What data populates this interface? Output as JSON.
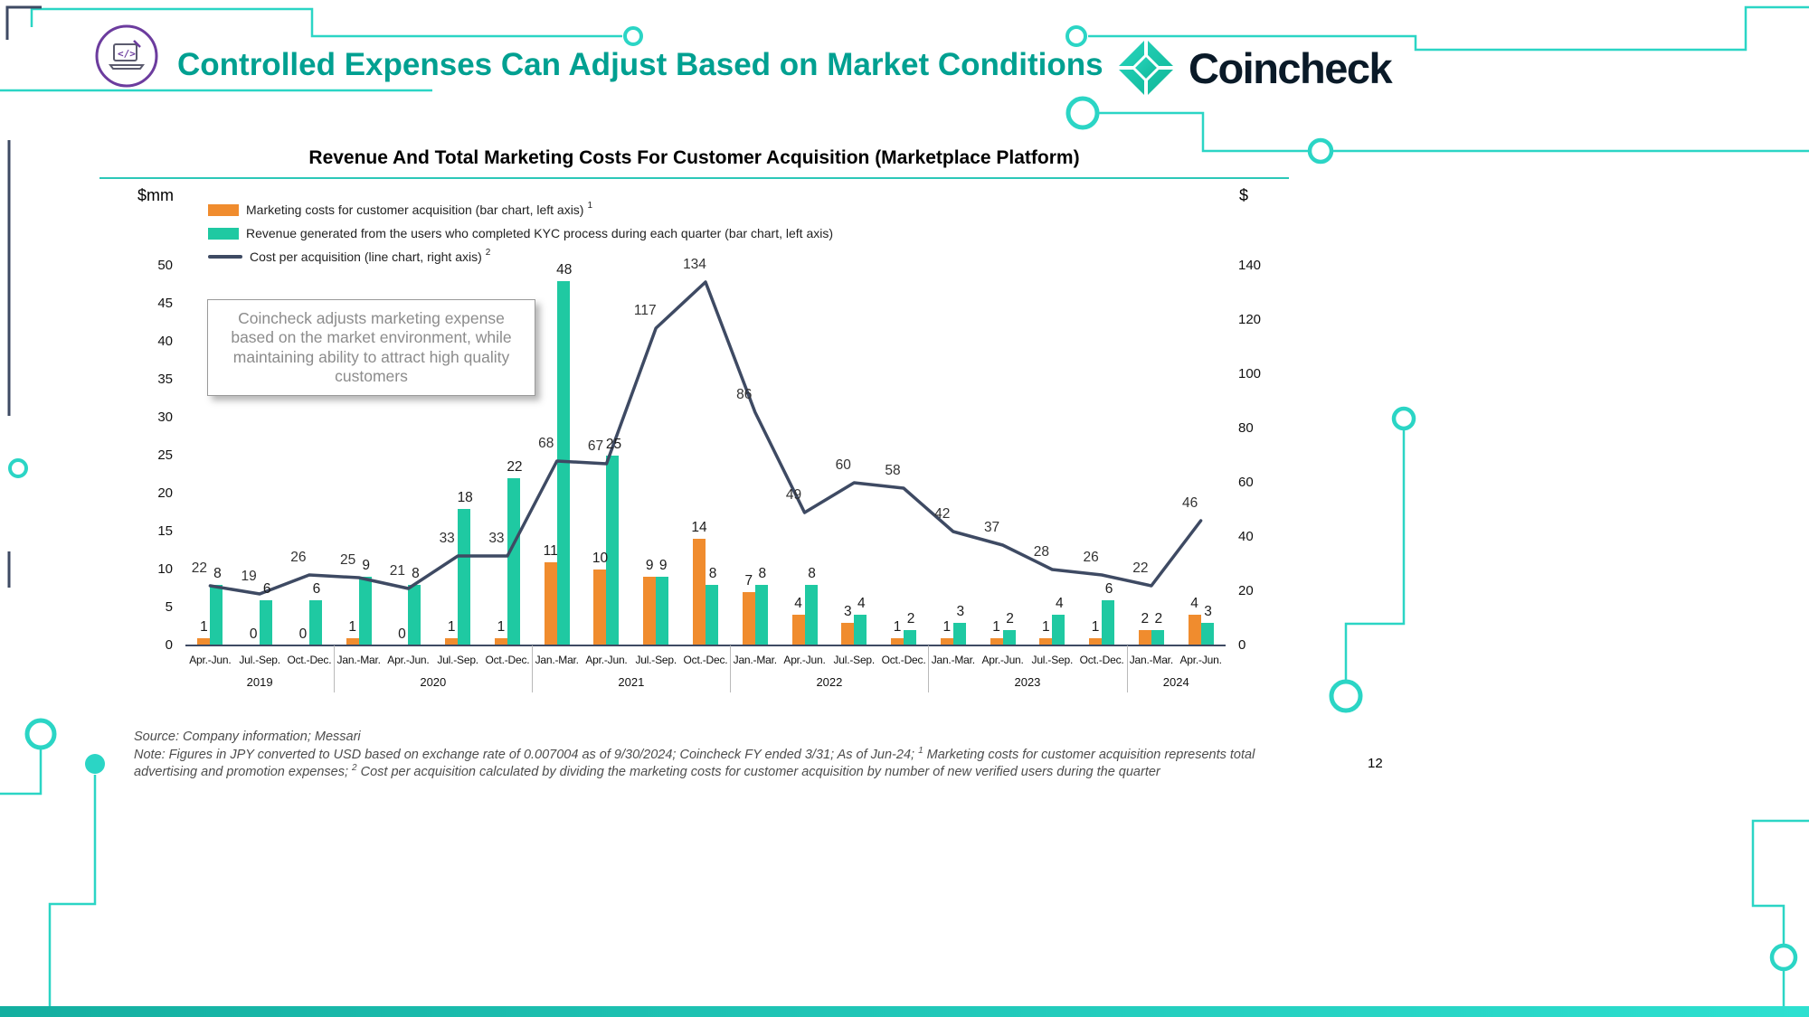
{
  "meta": {
    "page_number": "12"
  },
  "header": {
    "title": "Controlled Expenses Can Adjust Based on Market Conditions",
    "brand": "Coincheck"
  },
  "chart": {
    "title": "Revenue And Total Marketing Costs For Customer Acquisition (Marketplace Platform)",
    "annotation": "Coincheck adjusts marketing expense based on the market environment, while maintaining ability to attract high quality customers",
    "legend": [
      {
        "label": "Marketing costs for customer acquisition (bar chart, left axis)",
        "sup": "1",
        "series_index": 0,
        "swatch": "bar"
      },
      {
        "label": "Revenue generated from the users who completed KYC process during each quarter (bar chart, left axis)",
        "sup": "",
        "series_index": 1,
        "swatch": "bar"
      },
      {
        "label": "Cost per acquisition (line chart, right axis)",
        "sup": "2",
        "series_index": 2,
        "swatch": "line"
      }
    ]
  },
  "chart_data": {
    "type": "combo",
    "categories": [
      "Apr.-Jun.",
      "Jul.-Sep.",
      "Oct.-Dec.",
      "Jan.-Mar.",
      "Apr.-Jun.",
      "Jul.-Sep.",
      "Oct.-Dec.",
      "Jan.-Mar.",
      "Apr.-Jun.",
      "Jul.-Sep.",
      "Oct.-Dec.",
      "Jan.-Mar.",
      "Apr.-Jun.",
      "Jul.-Sep.",
      "Oct.-Dec.",
      "Jan.-Mar.",
      "Apr.-Jun.",
      "Jul.-Sep.",
      "Oct.-Dec.",
      "Jan.-Mar.",
      "Apr.-Jun."
    ],
    "years": [
      {
        "label": "2019",
        "count": 3
      },
      {
        "label": "2020",
        "count": 4
      },
      {
        "label": "2021",
        "count": 4
      },
      {
        "label": "2022",
        "count": 4
      },
      {
        "label": "2023",
        "count": 4
      },
      {
        "label": "2024",
        "count": 2
      }
    ],
    "series": [
      {
        "name": "Marketing costs for customer acquisition",
        "type": "bar",
        "axis": "left",
        "color": "#F08C2E",
        "values": [
          1,
          0,
          0,
          1,
          0,
          1,
          1,
          11,
          10,
          9,
          14,
          7,
          4,
          3,
          1,
          1,
          1,
          1,
          1,
          2,
          4
        ]
      },
      {
        "name": "Revenue generated from the users who completed KYC process during each quarter",
        "type": "bar",
        "axis": "left",
        "color": "#1FC9A2",
        "values": [
          8,
          6,
          6,
          9,
          8,
          18,
          22,
          48,
          25,
          9,
          8,
          8,
          8,
          4,
          2,
          3,
          2,
          4,
          6,
          2,
          3
        ]
      },
      {
        "name": "Cost per acquisition",
        "type": "line",
        "axis": "right",
        "color": "#3E4A63",
        "values": [
          22,
          19,
          26,
          25,
          21,
          33,
          33,
          68,
          67,
          117,
          134,
          86,
          49,
          60,
          58,
          42,
          37,
          28,
          26,
          22,
          46
        ]
      }
    ],
    "left_axis": {
      "label": "$mm",
      "min": 0,
      "max": 50,
      "step": 5
    },
    "right_axis": {
      "label": "$",
      "min": 0,
      "max": 140,
      "step": 20
    }
  },
  "footer": {
    "source": "Source: Company information; Messari",
    "note_pre": "Note: Figures in JPY converted to USD based on exchange rate of 0.007004 as of 9/30/2024; Coincheck FY ended 3/31; As of Jun-24; ",
    "note_sup1": "1",
    "note_mid": " Marketing costs for customer acquisition represents total advertising and promotion expenses; ",
    "note_sup2": "2",
    "note_post": " Cost per acquisition calculated by dividing the marketing costs for customer acquisition by number of new verified users during the quarter"
  },
  "colors": {
    "accent_teal": "#2BD5C5",
    "header_teal": "#00A091",
    "icon_purple": "#6C3C9E",
    "line_navy": "#3E4A63"
  }
}
